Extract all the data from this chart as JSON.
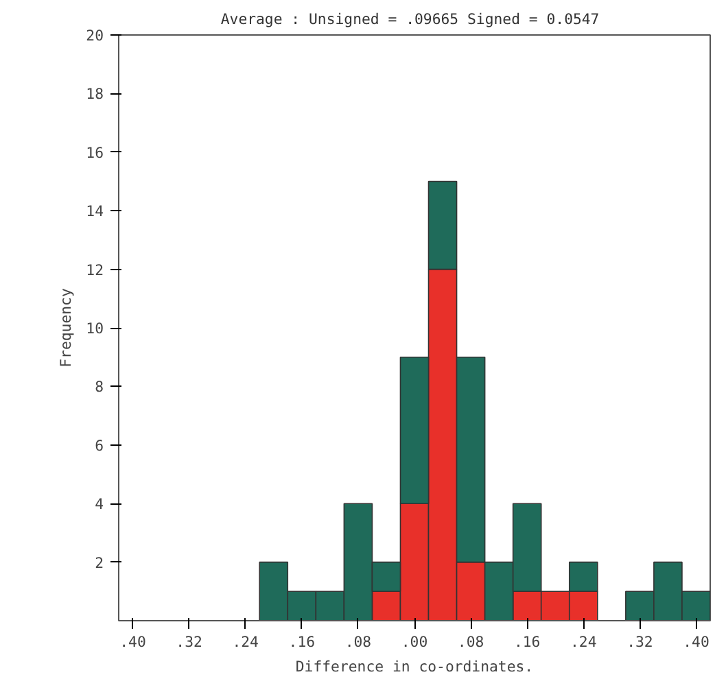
{
  "chart_data": {
    "type": "bar",
    "title": "Average : Unsigned = .09665 Signed =  0.0547",
    "xlabel": "Difference in co-ordinates.",
    "ylabel": "Frequency",
    "x": [
      -0.2,
      -0.16,
      -0.12,
      -0.08,
      -0.04,
      0.0,
      0.04,
      0.08,
      0.12,
      0.16,
      0.2,
      0.24,
      0.28,
      0.32,
      0.36,
      0.4
    ],
    "stacked": true,
    "series": [
      {
        "color": "#e8302a",
        "values": [
          0,
          0,
          0,
          0,
          1,
          4,
          12,
          2,
          0,
          1,
          1,
          1,
          0,
          0,
          0,
          0
        ]
      },
      {
        "color": "#1f6b5a",
        "values": [
          2,
          1,
          1,
          4,
          1,
          5,
          3,
          7,
          2,
          3,
          0,
          1,
          0,
          1,
          2,
          1
        ]
      }
    ],
    "xlim": [
      -0.42,
      0.42
    ],
    "xticks": [
      {
        "value": -0.4,
        "label": ".40"
      },
      {
        "value": -0.32,
        "label": ".32"
      },
      {
        "value": -0.24,
        "label": ".24"
      },
      {
        "value": -0.16,
        "label": ".16"
      },
      {
        "value": -0.08,
        "label": ".08"
      },
      {
        "value": 0,
        "label": ".00"
      },
      {
        "value": 0.08,
        "label": ".08"
      },
      {
        "value": 0.16,
        "label": ".16"
      },
      {
        "value": 0.24,
        "label": ".24"
      },
      {
        "value": 0.32,
        "label": ".32"
      },
      {
        "value": 0.4,
        "label": ".40"
      }
    ],
    "ylim": [
      0,
      20
    ],
    "yticks": [
      2,
      4,
      6,
      8,
      10,
      12,
      14,
      16,
      18,
      20
    ],
    "grid": false
  }
}
